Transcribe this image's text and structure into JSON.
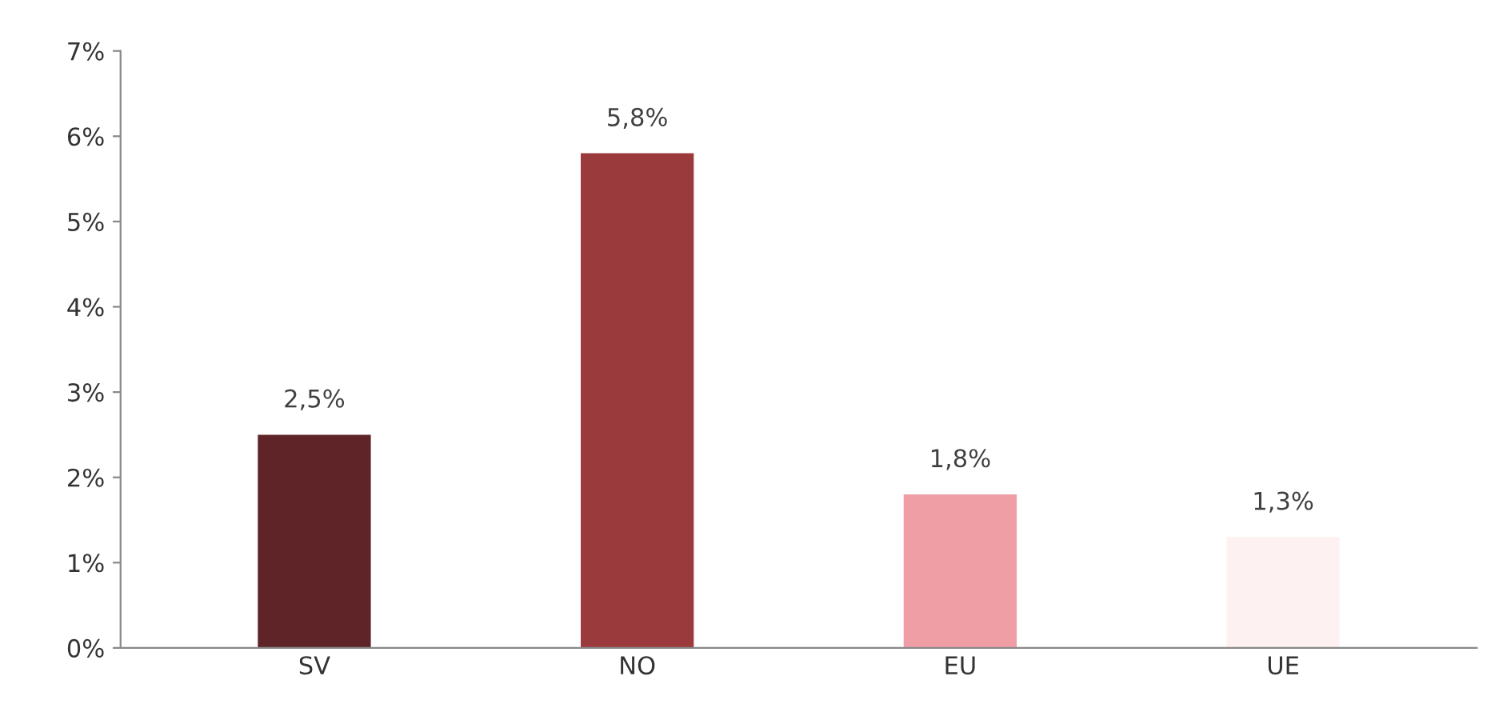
{
  "chart_data": {
    "type": "bar",
    "categories": [
      "SV",
      "NO",
      "EU",
      "UE"
    ],
    "values": [
      2.5,
      5.8,
      1.8,
      1.3
    ],
    "colors": [
      "#5e2428",
      "#9b3a3c",
      "#ee9ea4",
      "#fdf1f2"
    ],
    "value_labels": [
      "2,5%",
      "5,8%",
      "1,8%",
      "1,3%"
    ],
    "ylim": [
      0,
      7
    ],
    "yticks": [
      {
        "value": 0,
        "label": "0%"
      },
      {
        "value": 1,
        "label": "1%"
      },
      {
        "value": 2,
        "label": "2%"
      },
      {
        "value": 3,
        "label": "3%"
      },
      {
        "value": 4,
        "label": "4%"
      },
      {
        "value": 5,
        "label": "5%"
      },
      {
        "value": 6,
        "label": "6%"
      },
      {
        "value": 7,
        "label": "7%"
      }
    ],
    "grid": false,
    "legend": false
  }
}
